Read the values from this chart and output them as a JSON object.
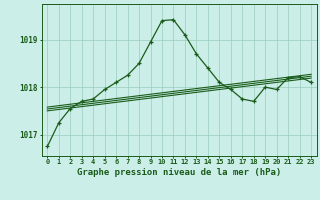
{
  "title": "Graphe pression niveau de la mer (hPa)",
  "background_color": "#cceee8",
  "plot_bg_color": "#cceee8",
  "grid_color": "#99ccbb",
  "line_color": "#1a5c1a",
  "x_labels": [
    "0",
    "1",
    "2",
    "3",
    "4",
    "5",
    "6",
    "7",
    "8",
    "9",
    "10",
    "11",
    "12",
    "13",
    "14",
    "15",
    "16",
    "17",
    "18",
    "19",
    "20",
    "21",
    "22",
    "23"
  ],
  "hours": [
    0,
    1,
    2,
    3,
    4,
    5,
    6,
    7,
    8,
    9,
    10,
    11,
    12,
    13,
    14,
    15,
    16,
    17,
    18,
    19,
    20,
    21,
    22,
    23
  ],
  "main_series": [
    1016.75,
    1017.25,
    1017.55,
    1017.7,
    1017.75,
    1017.95,
    1018.1,
    1018.25,
    1018.5,
    1018.95,
    1019.4,
    1019.42,
    1019.1,
    1018.7,
    1018.4,
    1018.1,
    1017.95,
    1017.75,
    1017.7,
    1018.0,
    1017.95,
    1018.2,
    1018.22,
    1018.1
  ],
  "trend1": [
    1017.58,
    1017.61,
    1017.64,
    1017.67,
    1017.7,
    1017.73,
    1017.76,
    1017.79,
    1017.82,
    1017.85,
    1017.88,
    1017.91,
    1017.94,
    1017.97,
    1018.0,
    1018.03,
    1018.06,
    1018.09,
    1018.12,
    1018.15,
    1018.18,
    1018.21,
    1018.24,
    1018.27
  ],
  "trend2": [
    1017.54,
    1017.57,
    1017.6,
    1017.63,
    1017.66,
    1017.69,
    1017.72,
    1017.75,
    1017.78,
    1017.81,
    1017.84,
    1017.87,
    1017.9,
    1017.93,
    1017.96,
    1017.99,
    1018.02,
    1018.05,
    1018.08,
    1018.11,
    1018.14,
    1018.17,
    1018.2,
    1018.23
  ],
  "trend3": [
    1017.5,
    1017.53,
    1017.56,
    1017.59,
    1017.62,
    1017.65,
    1017.68,
    1017.71,
    1017.74,
    1017.77,
    1017.8,
    1017.83,
    1017.86,
    1017.89,
    1017.92,
    1017.95,
    1017.98,
    1018.01,
    1018.04,
    1018.07,
    1018.1,
    1018.13,
    1018.16,
    1018.19
  ],
  "ylim": [
    1016.55,
    1019.75
  ],
  "yticks": [
    1017,
    1018,
    1019
  ],
  "title_fontsize": 6.5,
  "tick_fontsize": 5.0
}
